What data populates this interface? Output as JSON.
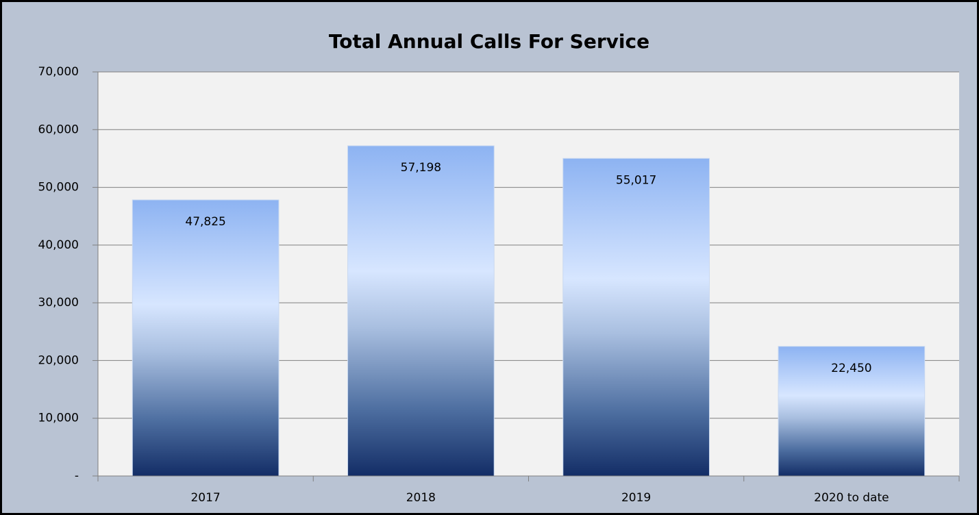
{
  "chart_data": {
    "type": "bar",
    "title": "Total Annual Calls For Service",
    "categories": [
      "2017",
      "2018",
      "2019",
      "2020 to date"
    ],
    "values": [
      47825,
      57198,
      55017,
      22450
    ],
    "value_labels": [
      "47,825",
      "57,198",
      "55,017",
      "22,450"
    ],
    "ylim": [
      0,
      70000
    ],
    "yticks": [
      {
        "value": 0,
        "label": "-"
      },
      {
        "value": 10000,
        "label": "10,000"
      },
      {
        "value": 20000,
        "label": "20,000"
      },
      {
        "value": 30000,
        "label": "30,000"
      },
      {
        "value": 40000,
        "label": "40,000"
      },
      {
        "value": 50000,
        "label": "50,000"
      },
      {
        "value": 60000,
        "label": "60,000"
      },
      {
        "value": 70000,
        "label": "70,000"
      }
    ],
    "grid": true
  }
}
